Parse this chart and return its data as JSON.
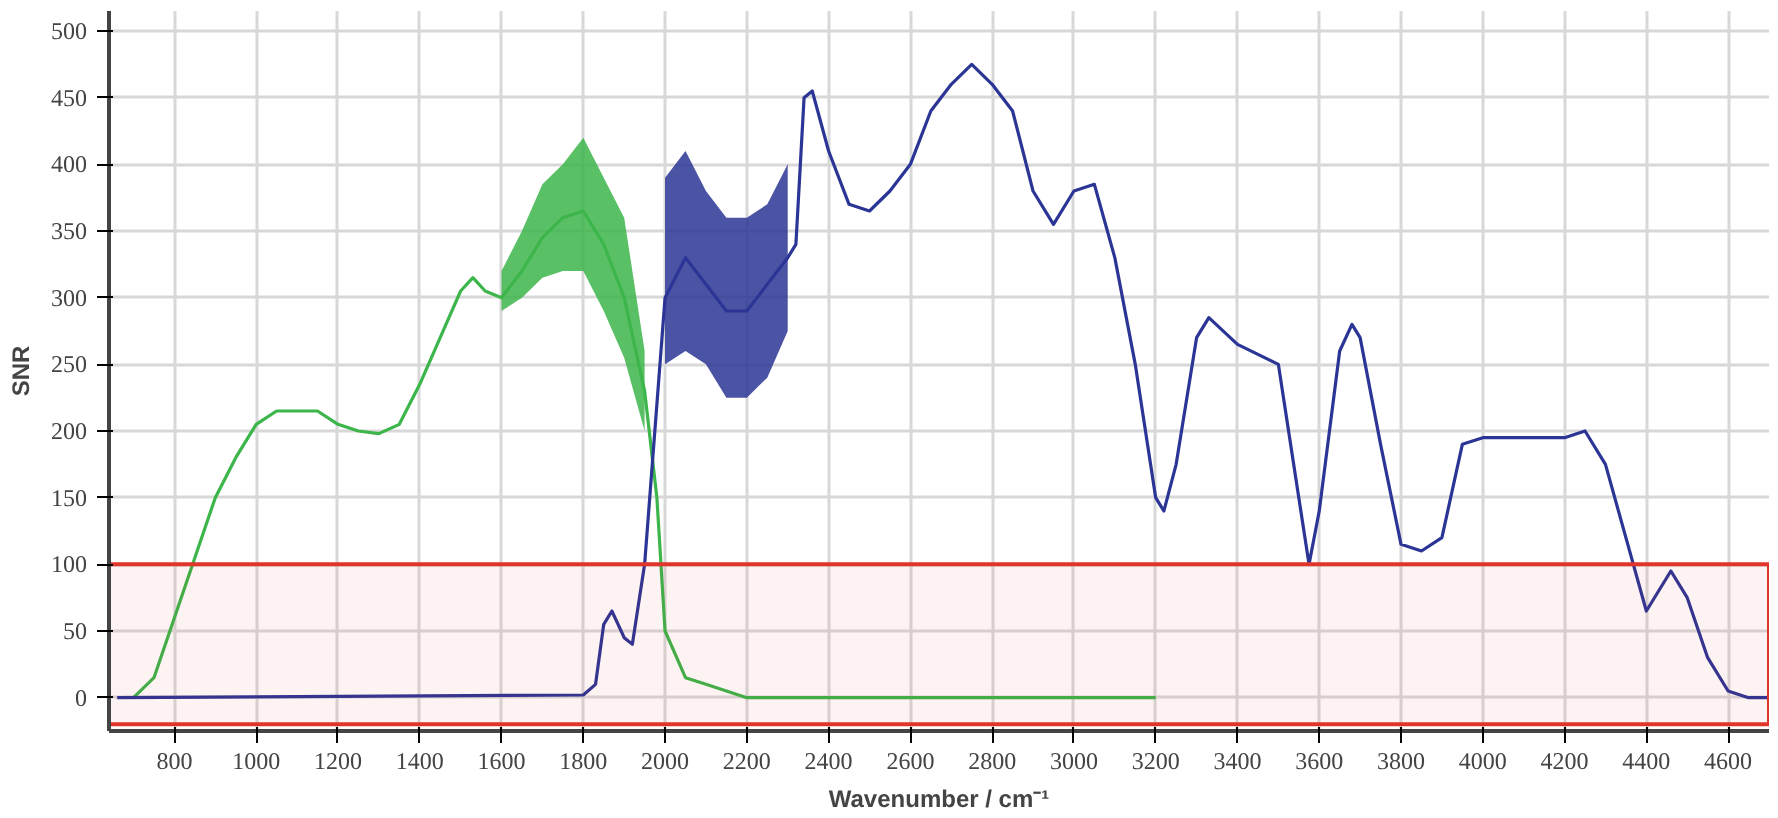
{
  "chart_data": {
    "type": "line",
    "xlabel": "Wavenumber / cm⁻¹",
    "ylabel": "SNR",
    "xlim": [
      640,
      4700
    ],
    "ylim": [
      -25,
      515
    ],
    "xticks": [
      800,
      1000,
      1200,
      1400,
      1600,
      1800,
      2000,
      2200,
      2400,
      2600,
      2800,
      3000,
      3200,
      3400,
      3600,
      3800,
      4000,
      4200,
      4400,
      4600
    ],
    "yticks": [
      0,
      50,
      100,
      150,
      200,
      250,
      300,
      350,
      400,
      450,
      500
    ],
    "grid": true,
    "line_style": "solid",
    "bands": [
      {
        "axis": "y",
        "from": -20,
        "to": 100,
        "color": "#e0352b"
      }
    ],
    "series": [
      {
        "color": "#3cb54a",
        "x": [
          700,
          750,
          800,
          850,
          900,
          950,
          1000,
          1050,
          1100,
          1150,
          1200,
          1250,
          1300,
          1350,
          1400,
          1450,
          1500,
          1530,
          1560,
          1600,
          1650,
          1700,
          1750,
          1800,
          1850,
          1900,
          1950,
          1980,
          2000,
          2050,
          2100,
          2150,
          2200,
          3200
        ],
        "values": [
          0,
          15,
          60,
          105,
          150,
          180,
          205,
          215,
          215,
          215,
          205,
          200,
          198,
          205,
          235,
          270,
          305,
          315,
          305,
          300,
          320,
          345,
          360,
          365,
          340,
          300,
          230,
          150,
          50,
          15,
          10,
          5,
          0,
          0
        ],
        "lower": [
          null,
          null,
          null,
          null,
          null,
          null,
          null,
          null,
          null,
          null,
          null,
          null,
          null,
          null,
          null,
          null,
          null,
          null,
          null,
          290,
          300,
          315,
          320,
          320,
          290,
          255,
          200,
          null,
          null,
          null,
          null,
          null,
          null,
          null
        ],
        "upper": [
          null,
          null,
          null,
          null,
          null,
          null,
          null,
          null,
          null,
          null,
          null,
          null,
          null,
          null,
          null,
          null,
          null,
          null,
          null,
          320,
          350,
          385,
          400,
          420,
          390,
          360,
          260,
          null,
          null,
          null,
          null,
          null,
          null,
          null
        ]
      },
      {
        "color": "#2b3595",
        "x": [
          660,
          1800,
          1830,
          1850,
          1870,
          1900,
          1920,
          1950,
          1970,
          2000,
          2050,
          2100,
          2150,
          2200,
          2250,
          2300,
          2320,
          2340,
          2360,
          2400,
          2450,
          2500,
          2550,
          2600,
          2650,
          2700,
          2750,
          2800,
          2850,
          2900,
          2950,
          3000,
          3050,
          3100,
          3150,
          3200,
          3220,
          3250,
          3300,
          3330,
          3400,
          3500,
          3550,
          3575,
          3600,
          3650,
          3680,
          3700,
          3750,
          3800,
          3850,
          3900,
          3950,
          4000,
          4100,
          4200,
          4250,
          4300,
          4350,
          4400,
          4430,
          4460,
          4500,
          4550,
          4600,
          4650,
          4700
        ],
        "values": [
          0,
          2,
          10,
          55,
          65,
          45,
          40,
          100,
          180,
          300,
          330,
          310,
          290,
          290,
          310,
          330,
          340,
          450,
          455,
          410,
          370,
          365,
          380,
          400,
          440,
          460,
          475,
          460,
          440,
          380,
          355,
          380,
          385,
          330,
          250,
          150,
          140,
          175,
          270,
          285,
          265,
          250,
          150,
          100,
          140,
          260,
          280,
          270,
          190,
          115,
          110,
          120,
          190,
          195,
          195,
          195,
          200,
          175,
          120,
          65,
          80,
          95,
          75,
          30,
          5,
          0,
          0
        ],
        "lower": [
          null,
          null,
          null,
          null,
          null,
          null,
          null,
          null,
          null,
          250,
          260,
          250,
          225,
          225,
          240,
          275,
          null,
          null,
          null,
          null,
          null,
          null,
          null,
          null,
          null,
          null,
          null,
          null,
          null,
          null,
          null,
          null,
          null,
          null,
          null,
          null,
          null,
          null,
          null,
          null,
          null,
          null,
          null,
          null,
          null,
          null,
          null,
          null,
          null,
          null,
          null,
          null,
          null,
          null,
          null,
          null,
          null,
          null,
          null,
          null,
          null,
          null,
          null,
          null,
          null,
          null,
          null
        ],
        "upper": [
          null,
          null,
          null,
          null,
          null,
          null,
          null,
          null,
          null,
          390,
          410,
          380,
          360,
          360,
          370,
          400,
          null,
          null,
          null,
          null,
          null,
          null,
          null,
          null,
          null,
          null,
          null,
          null,
          null,
          null,
          null,
          null,
          null,
          null,
          null,
          null,
          null,
          null,
          null,
          null,
          null,
          null,
          null,
          null,
          null,
          null,
          null,
          null,
          null,
          null,
          null,
          null,
          null,
          null,
          null,
          null,
          null,
          null,
          null,
          null,
          null,
          null,
          null,
          null,
          null,
          null,
          null
        ]
      }
    ]
  }
}
